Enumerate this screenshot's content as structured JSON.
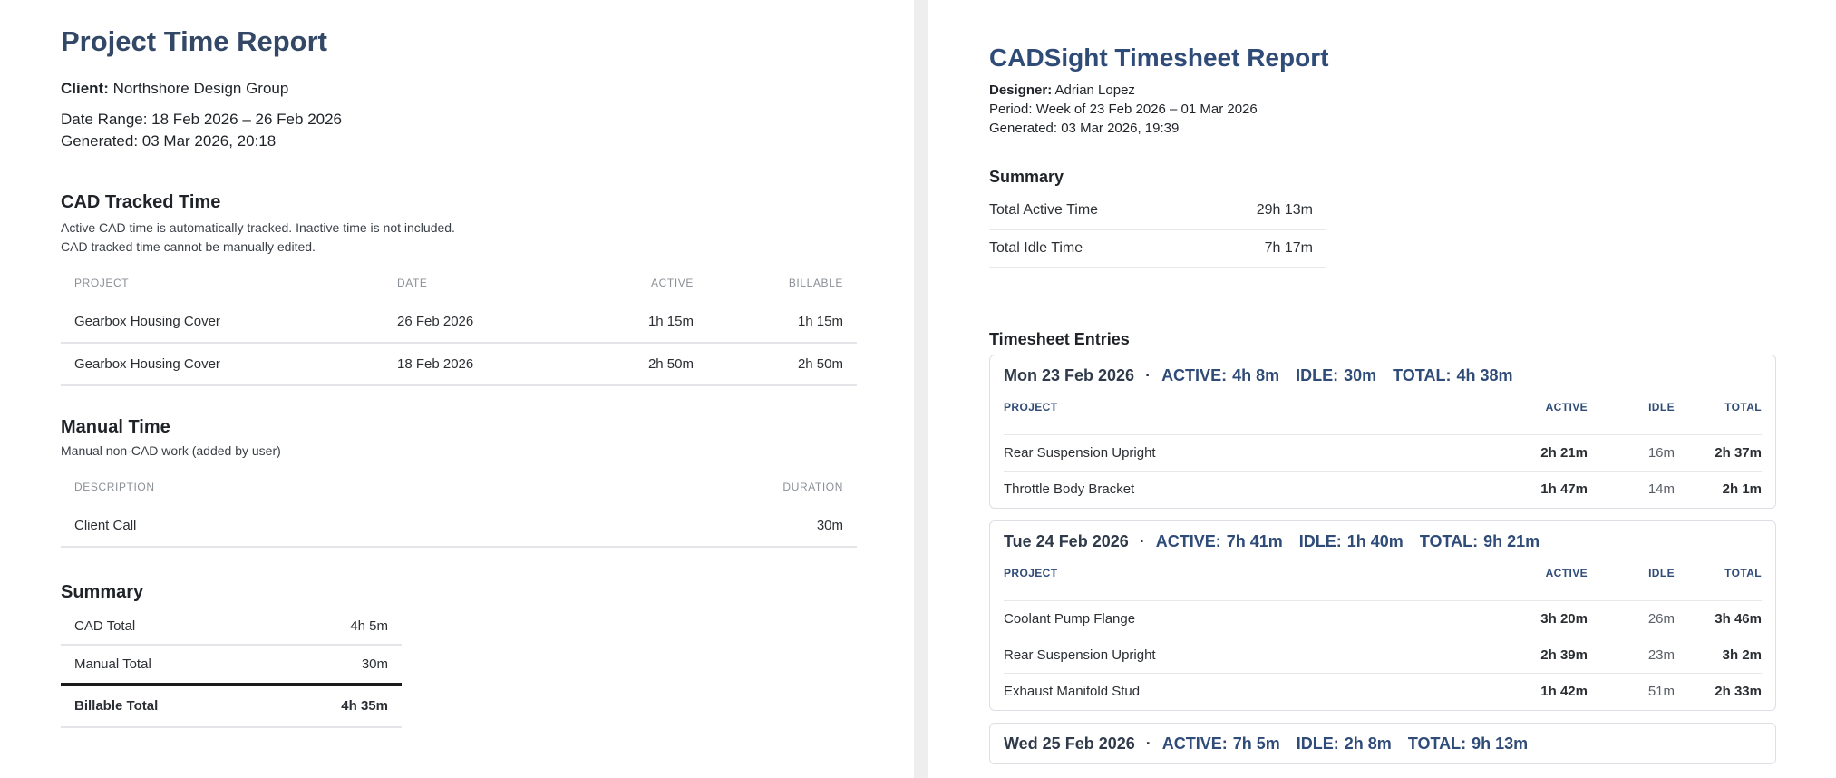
{
  "left_report": {
    "title": "Project Time Report",
    "client_label": "Client:",
    "client_value": "Northshore Design Group",
    "date_range": "Date Range: 18 Feb 2026 – 26 Feb 2026",
    "generated": "Generated: 03 Mar 2026, 20:18",
    "cad_section": {
      "title": "CAD Tracked Time",
      "note_1": "Active CAD time is automatically tracked. Inactive time is not included.",
      "note_2": "CAD tracked time cannot be manually edited.",
      "headers": [
        "PROJECT",
        "DATE",
        "ACTIVE",
        "BILLABLE"
      ],
      "rows": [
        {
          "project": "Gearbox Housing Cover",
          "date": "26 Feb 2026",
          "active": "1h 15m",
          "billable": "1h 15m"
        },
        {
          "project": "Gearbox Housing Cover",
          "date": "18 Feb 2026",
          "active": "2h 50m",
          "billable": "2h 50m"
        }
      ]
    },
    "manual_section": {
      "title": "Manual Time",
      "note": "Manual non-CAD work (added by user)",
      "headers": [
        "DESCRIPTION",
        "DURATION"
      ],
      "rows": [
        {
          "description": "Client Call",
          "duration": "30m"
        }
      ]
    },
    "summary": {
      "title": "Summary",
      "rows": [
        {
          "label": "CAD Total",
          "value": "4h 5m"
        },
        {
          "label": "Manual Total",
          "value": "30m"
        },
        {
          "label": "Billable Total",
          "value": "4h 35m"
        }
      ]
    }
  },
  "right_report": {
    "title": "CADSight Timesheet Report",
    "designer_label": "Designer:",
    "designer_value": "Adrian Lopez",
    "period": "Period: Week of 23 Feb 2026 – 01 Mar 2026",
    "generated": "Generated: 03 Mar 2026, 19:39",
    "summary": {
      "title": "Summary",
      "rows": [
        {
          "label": "Total Active Time",
          "value": "29h 13m"
        },
        {
          "label": "Total Idle Time",
          "value": "7h 17m"
        }
      ]
    },
    "entries_title": "Timesheet Entries",
    "day_labels": {
      "active": "ACTIVE:",
      "idle": "IDLE:",
      "total": "TOTAL:",
      "separator": "·"
    },
    "table_headers": [
      "PROJECT",
      "ACTIVE",
      "IDLE",
      "TOTAL"
    ],
    "days": [
      {
        "date": "Mon 23 Feb 2026",
        "active": "4h 8m",
        "idle": "30m",
        "total": "4h 38m",
        "rows": [
          {
            "project": "Rear Suspension Upright",
            "active": "2h 21m",
            "idle": "16m",
            "total": "2h 37m"
          },
          {
            "project": "Throttle Body Bracket",
            "active": "1h 47m",
            "idle": "14m",
            "total": "2h 1m"
          }
        ]
      },
      {
        "date": "Tue 24 Feb 2026",
        "active": "7h 41m",
        "idle": "1h 40m",
        "total": "9h 21m",
        "rows": [
          {
            "project": "Coolant Pump Flange",
            "active": "3h 20m",
            "idle": "26m",
            "total": "3h 46m"
          },
          {
            "project": "Rear Suspension Upright",
            "active": "2h 39m",
            "idle": "23m",
            "total": "3h 2m"
          },
          {
            "project": "Exhaust Manifold Stud",
            "active": "1h 42m",
            "idle": "51m",
            "total": "2h 33m"
          }
        ]
      },
      {
        "date": "Wed 25 Feb 2026",
        "active": "7h 5m",
        "idle": "2h 8m",
        "total": "9h 13m",
        "rows": []
      }
    ]
  }
}
